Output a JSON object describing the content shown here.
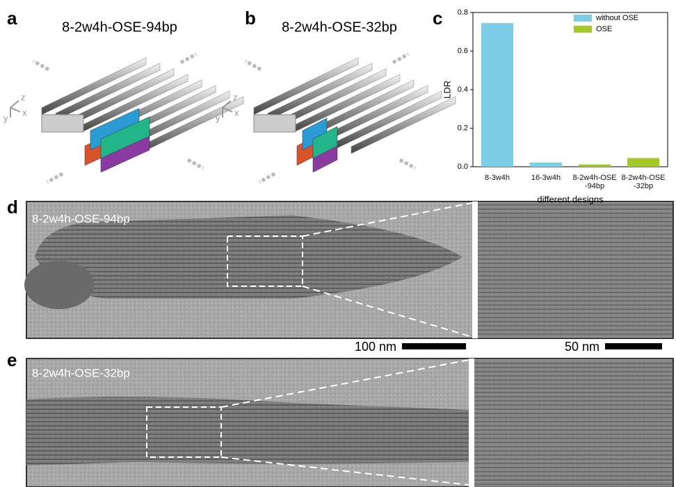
{
  "panels": {
    "a": {
      "letter": "a",
      "title": "8-2w4h-OSE-94bp",
      "axes": [
        "z",
        "x",
        "y"
      ]
    },
    "b": {
      "letter": "b",
      "title": "8-2w4h-OSE-32bp",
      "axes": [
        "z",
        "x",
        "y"
      ]
    },
    "c": {
      "letter": "c"
    },
    "d": {
      "letter": "d",
      "label": "8-2w4h-OSE-94bp",
      "scale_left": "100 nm",
      "scale_right": "50 nm"
    },
    "e": {
      "letter": "e",
      "label": "8-2w4h-OSE-32bp"
    }
  },
  "chart_data": {
    "type": "bar",
    "y_label": "LDR",
    "x_label": "different designs",
    "categories": [
      "8-3w4h",
      "16-3w4h",
      "8-2w4h-OSE\n-94bp",
      "8-2w4h-OSE\n-32bp"
    ],
    "series": [
      {
        "name": "without OSE",
        "color": "#7ecde6",
        "values": [
          0.745,
          0.022,
          null,
          null
        ]
      },
      {
        "name": "OSE",
        "color": "#a4c72a",
        "values": [
          null,
          null,
          0.012,
          0.045
        ]
      }
    ],
    "ylim": [
      0,
      0.8
    ],
    "yticks": [
      {
        "value": 0,
        "label": "0.0"
      },
      {
        "value": 0.2,
        "label": "0.2"
      },
      {
        "value": 0.4,
        "label": "0.4"
      },
      {
        "value": 0.6,
        "label": "0.6"
      },
      {
        "value": 0.8,
        "label": "0.8"
      }
    ],
    "legend": "top-right"
  }
}
